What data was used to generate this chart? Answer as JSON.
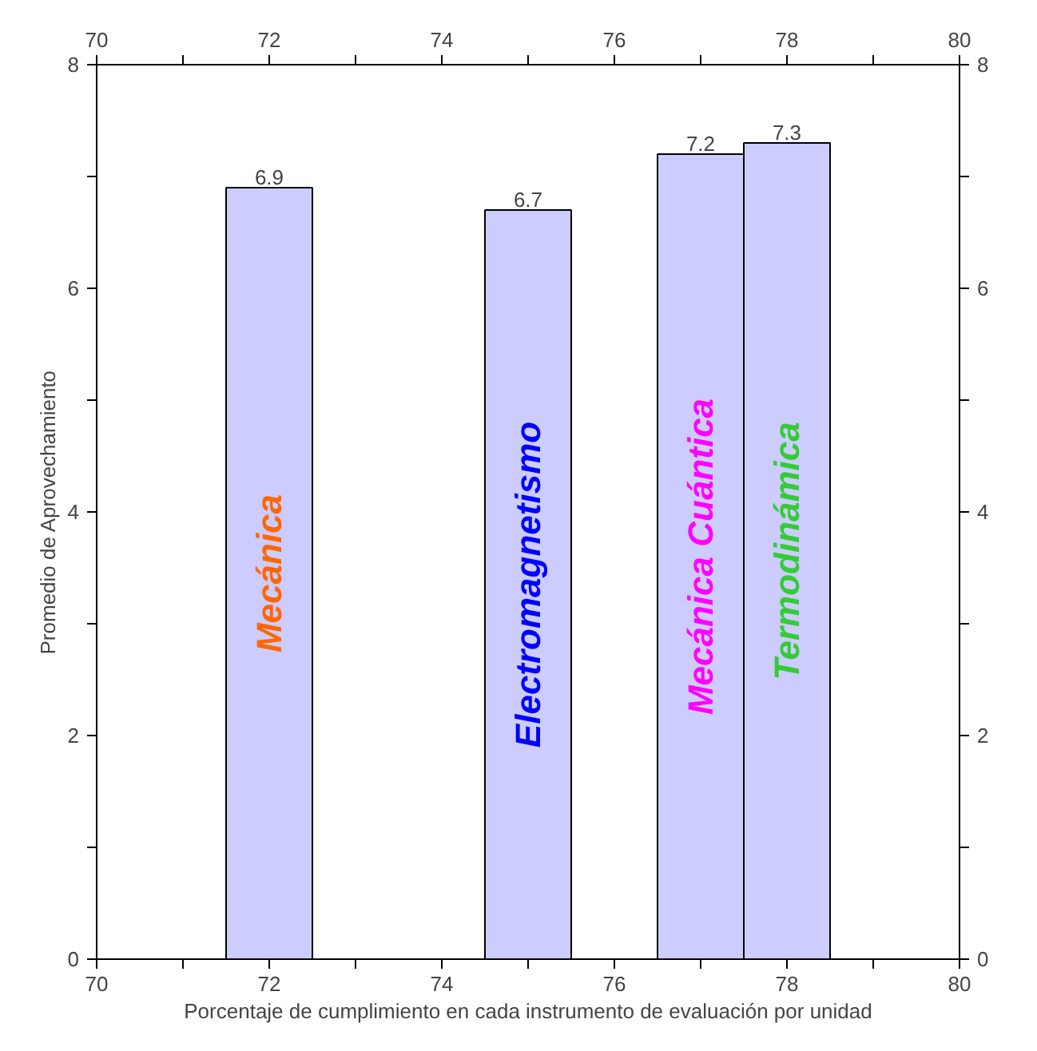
{
  "chart_data": {
    "type": "bar",
    "xlabel": "Porcentaje de cumplimiento en cada instrumento de evaluación por unidad",
    "ylabel": "Promedio de Aprovechamiento",
    "x": [
      72,
      75,
      77,
      78
    ],
    "values": [
      6.9,
      6.7,
      7.2,
      7.3
    ],
    "color": "#ccccff",
    "data_labels": true,
    "xlim": [
      70,
      80
    ],
    "xticks": [
      70,
      {
        "value": 71,
        "label": null
      },
      72,
      {
        "value": 73,
        "label": null
      },
      74,
      {
        "value": 75,
        "label": null
      },
      76,
      {
        "value": 77,
        "label": null
      },
      78,
      {
        "value": 79,
        "label": null
      },
      80
    ],
    "x2lim": [
      70,
      80
    ],
    "x2ticks": [
      70,
      {
        "value": 71,
        "label": null
      },
      72,
      {
        "value": 73,
        "label": null
      },
      74,
      {
        "value": 75,
        "label": null
      },
      76,
      {
        "value": 77,
        "label": null
      },
      78,
      {
        "value": 79,
        "label": null
      },
      80
    ],
    "ylim": [
      0,
      8
    ],
    "yticks": [
      0,
      {
        "value": 1,
        "label": null
      },
      2,
      {
        "value": 3,
        "label": null
      },
      4,
      {
        "value": 5,
        "label": null
      },
      6,
      {
        "value": 7,
        "label": null
      },
      8
    ],
    "y2lim": [
      0,
      8
    ],
    "y2ticks": [
      0,
      {
        "value": 1,
        "label": null
      },
      2,
      {
        "value": 3,
        "label": null
      },
      4,
      {
        "value": 5,
        "label": null
      },
      6,
      {
        "value": 7,
        "label": null
      },
      8
    ],
    "grid": false,
    "annotations": [
      "Mecánica",
      "Electromagnetismo",
      "Mecánica Cuántica",
      "Termodinámica"
    ]
  }
}
